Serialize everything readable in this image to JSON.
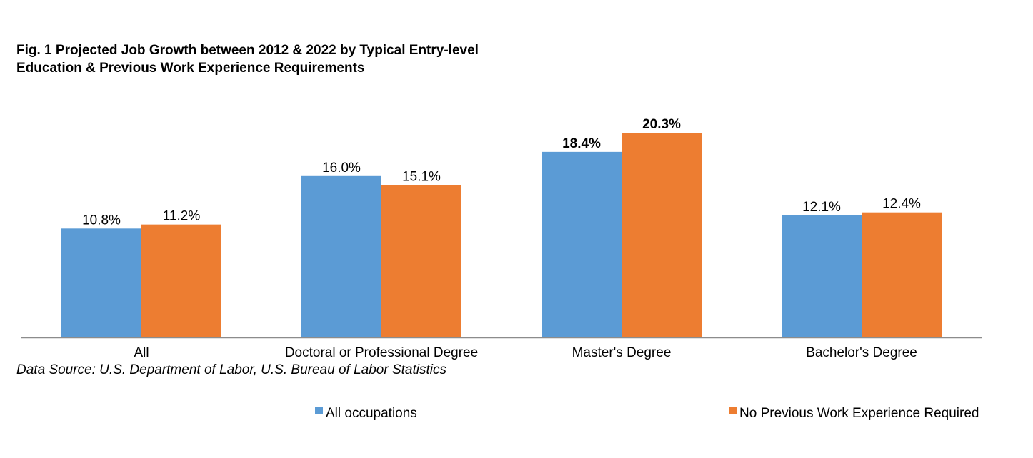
{
  "chart_data": {
    "type": "bar",
    "title_lines": [
      "Fig. 1 Projected Job Growth between 2012 & 2022 by Typical Entry-level",
      "Education & Previous Work Experience Requirements"
    ],
    "source": "Data Source: U.S. Department of Labor, U.S. Bureau of Labor Statistics",
    "categories": [
      "All",
      "Doctoral or Professional Degree",
      "Master's Degree",
      "Bachelor's Degree"
    ],
    "series": [
      {
        "name": "All occupations",
        "color": "#5b9bd5",
        "values": [
          10.8,
          16.0,
          18.4,
          12.1
        ],
        "labels": [
          "10.8%",
          "16.0%",
          "18.4%",
          "12.1%"
        ]
      },
      {
        "name": "No Previous Work Experience Required",
        "color": "#ed7d31",
        "values": [
          11.2,
          15.1,
          20.3,
          12.4
        ],
        "labels": [
          "11.2%",
          "15.1%",
          "20.3%",
          "12.4%"
        ]
      }
    ],
    "bold_category": "Master's Degree",
    "ylim": [
      0,
      20.3
    ],
    "grid": false,
    "legend_position": "bottom"
  }
}
